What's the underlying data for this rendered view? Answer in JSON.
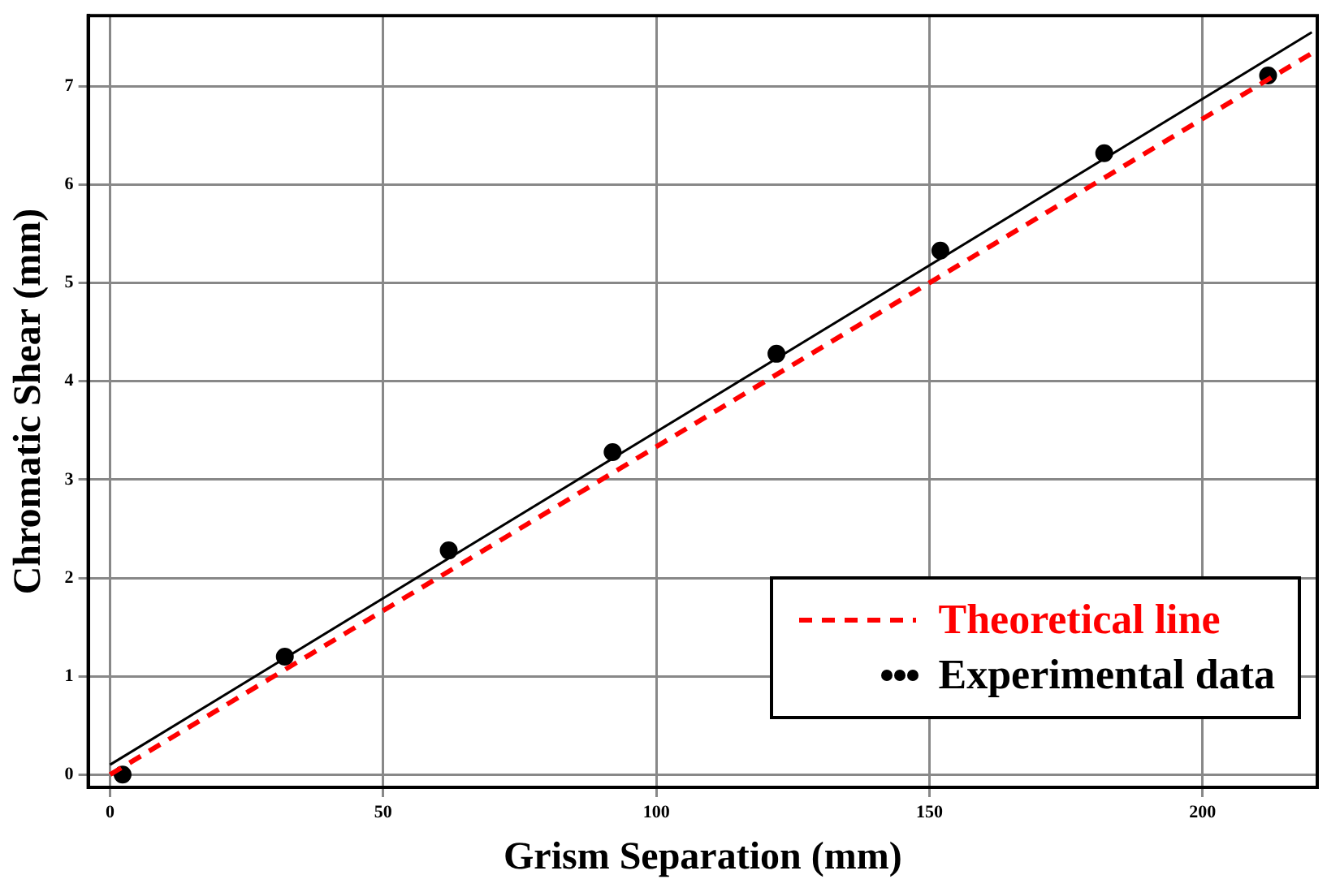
{
  "chart_data": {
    "type": "scatter",
    "xlabel": "Grism Separation (mm)",
    "ylabel": "Chromatic Shear (mm)",
    "xlim": [
      -4,
      221
    ],
    "ylim": [
      -0.13,
      7.72
    ],
    "xticks": [
      0,
      50,
      100,
      150,
      200
    ],
    "yticks": [
      0,
      1,
      2,
      3,
      4,
      5,
      6,
      7
    ],
    "grid": true,
    "legend": "bottom right",
    "series": [
      {
        "name": "Theoretical line",
        "type": "line",
        "color": "#ff0000",
        "line_style": "dashed",
        "marker": "none",
        "x": [
          0,
          221
        ],
        "values": [
          0,
          7.37
        ]
      },
      {
        "type": "line",
        "color": "#000000",
        "line_style": "solid",
        "marker": "none",
        "x": [
          0,
          220
        ],
        "values": [
          0.1,
          7.55
        ]
      },
      {
        "name": "Experimental data",
        "type": "scatter",
        "color": "#000000",
        "marker": "circle",
        "x": [
          2.3,
          32,
          62,
          92,
          122,
          152,
          182,
          212
        ],
        "values": [
          0,
          1.2,
          2.28,
          3.28,
          4.28,
          5.33,
          6.32,
          7.11
        ]
      }
    ]
  }
}
